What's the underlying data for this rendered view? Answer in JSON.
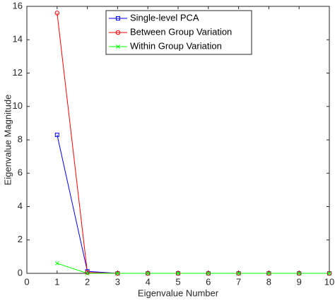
{
  "chart_data": {
    "type": "line",
    "x_label": "Eigenvalue Number",
    "y_label": "Eigenvalue Magnitude",
    "x": [
      1,
      2,
      3,
      4,
      5,
      6,
      7,
      8,
      9,
      10
    ],
    "series": [
      {
        "name": "Single-level PCA",
        "color": "#0000ff",
        "marker": "square",
        "values": [
          8.3,
          0.12,
          0,
          0,
          0,
          0,
          0,
          0,
          0,
          0
        ]
      },
      {
        "name": "Between Group Variation",
        "color": "#ff0000",
        "marker": "circle",
        "values": [
          15.6,
          0.05,
          0,
          0,
          0,
          0,
          0,
          0,
          0,
          0
        ]
      },
      {
        "name": "Within Group Variation",
        "color": "#00ff00",
        "marker": "x",
        "values": [
          0.6,
          0,
          0,
          0,
          0,
          0,
          0,
          0,
          0,
          0
        ]
      }
    ],
    "xlim": [
      0,
      10
    ],
    "xticks": [
      0,
      1,
      2,
      3,
      4,
      5,
      6,
      7,
      8,
      9,
      10
    ],
    "ylim": [
      0,
      16
    ],
    "yticks": [
      0,
      2,
      4,
      6,
      8,
      10,
      12,
      14,
      16
    ],
    "legend": "north"
  }
}
